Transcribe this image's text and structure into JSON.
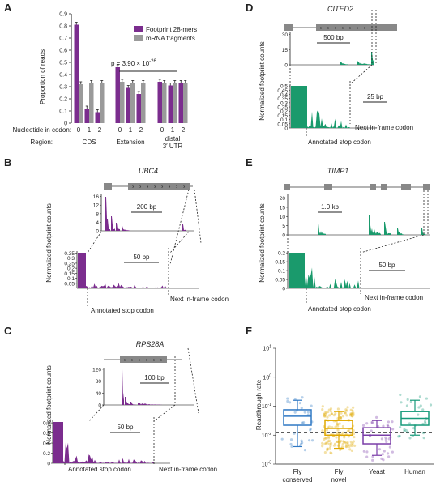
{
  "colors": {
    "purple": "#7b2d8e",
    "grey": "#9a9a9a",
    "green": "#1a9a6c",
    "blue": "#2f78c4",
    "orange": "#e0a800",
    "violet": "#7a3da8",
    "teal": "#179a7a"
  },
  "panels": {
    "A": {
      "letter": "A",
      "ylabel": "Proportion of reads",
      "legend": [
        "Footprint 28-mers",
        "mRNA fragments"
      ],
      "nt_label": "Nucleotide in codon:",
      "region_label": "Region:",
      "groups": [
        "CDS",
        "Extension",
        "distal\n3′ UTR"
      ],
      "codon_ticks": [
        "0",
        "1",
        "2"
      ],
      "pval": "p = 3.90 × 10",
      "pval_exp": "-26"
    },
    "B": {
      "letter": "B",
      "gene": "UBC4",
      "scale_top": "200 bp",
      "scale_bottom": "50 bp",
      "stop": "Annotated stop codon",
      "next": "Next in-frame codon",
      "ylabel": "Normalized footprint counts"
    },
    "C": {
      "letter": "C",
      "gene": "RPS28A",
      "scale_top": "100 bp",
      "scale_bottom": "50 bp",
      "stop": "Annotated stop codon",
      "next": "Next in-frame codon",
      "ylabel": "Normalized footprint counts"
    },
    "D": {
      "letter": "D",
      "gene": "CITED2",
      "scale_top": "500 bp",
      "scale_bottom": "25 bp",
      "stop": "Annotated stop codon",
      "next": "Next in-frame codon",
      "ylabel": "Normalized footprint counts"
    },
    "E": {
      "letter": "E",
      "gene": "TIMP1",
      "scale_top": "1.0 kb",
      "scale_bottom": "50 bp",
      "stop": "Annotated stop codon",
      "next": "Next in-frame codon",
      "ylabel": "Normalized footprint counts"
    },
    "F": {
      "letter": "F",
      "ylabel": "Readthrough rate",
      "categories": [
        "Fly\nconserved",
        "Fly\nnovel",
        "Yeast",
        "Human"
      ]
    }
  },
  "chart_data": [
    {
      "panel": "A",
      "type": "bar",
      "ylabel": "Proportion of reads",
      "ylim": [
        0,
        0.9
      ],
      "yticks": [
        0,
        0.1,
        0.2,
        0.3,
        0.4,
        0.5,
        0.6,
        0.7,
        0.8,
        0.9
      ],
      "groups": [
        "CDS",
        "Extension",
        "distal 3′ UTR"
      ],
      "categories": [
        "0",
        "1",
        "2"
      ],
      "series": [
        {
          "name": "Footprint 28-mers",
          "values": [
            [
              0.81,
              0.12,
              0.09
            ],
            [
              0.46,
              0.29,
              0.24
            ],
            [
              0.34,
              0.31,
              0.33
            ]
          ]
        },
        {
          "name": "mRNA fragments",
          "values": [
            [
              0.32,
              0.33,
              0.33
            ],
            [
              0.34,
              0.33,
              0.33
            ],
            [
              0.33,
              0.33,
              0.33
            ]
          ]
        }
      ],
      "annotation": "p = 3.90 × 10^-26"
    },
    {
      "panel": "B",
      "type": "area",
      "gene": "UBC4",
      "top_yticks": [
        0,
        4,
        8,
        12,
        16
      ],
      "top_ylim": [
        0,
        17
      ],
      "bottom_yticks": [
        0.05,
        0.1,
        0.15,
        0.2,
        0.25,
        0.3,
        0.35
      ],
      "bottom_ylim": [
        0,
        0.37
      ]
    },
    {
      "panel": "C",
      "type": "area",
      "gene": "RPS28A",
      "top_yticks": [
        0,
        40,
        80,
        120
      ],
      "top_ylim": [
        0,
        125
      ],
      "bottom_yticks": [
        0,
        0.2,
        0.4,
        0.6,
        0.8
      ],
      "bottom_ylim": [
        0,
        0.85
      ]
    },
    {
      "panel": "D",
      "type": "area",
      "gene": "CITED2",
      "top_yticks": [
        0,
        15,
        30
      ],
      "top_ylim": [
        0,
        32
      ],
      "bottom_yticks": [
        0,
        0.05,
        0.1,
        0.15,
        0.2,
        0.25,
        0.3,
        0.35,
        0.4,
        0.45,
        0.5
      ],
      "bottom_ylim": [
        0,
        0.52
      ]
    },
    {
      "panel": "E",
      "type": "area",
      "gene": "TIMP1",
      "top_yticks": [
        0,
        5,
        10,
        15,
        20
      ],
      "top_ylim": [
        0,
        22
      ],
      "bottom_yticks": [
        0,
        0.05,
        0.1,
        0.15,
        0.2
      ],
      "bottom_ylim": [
        0,
        0.21
      ]
    },
    {
      "panel": "F",
      "type": "box",
      "ylabel": "Readthrough rate",
      "log_scale": true,
      "ylim_exp": [
        -3,
        1
      ],
      "ytick_exps": [
        -3,
        -2,
        -1,
        0,
        1
      ],
      "reference_line": 0.012,
      "categories": [
        "Fly conserved",
        "Fly novel",
        "Yeast",
        "Human"
      ],
      "boxes": [
        {
          "min": 0.004,
          "q1": 0.022,
          "median": 0.045,
          "q3": 0.075,
          "max": 0.16
        },
        {
          "min": 0.0035,
          "q1": 0.01,
          "median": 0.017,
          "q3": 0.032,
          "max": 0.065
        },
        {
          "min": 0.002,
          "q1": 0.005,
          "median": 0.01,
          "q3": 0.018,
          "max": 0.032
        },
        {
          "min": 0.01,
          "q1": 0.022,
          "median": 0.038,
          "q3": 0.065,
          "max": 0.16
        }
      ]
    }
  ]
}
